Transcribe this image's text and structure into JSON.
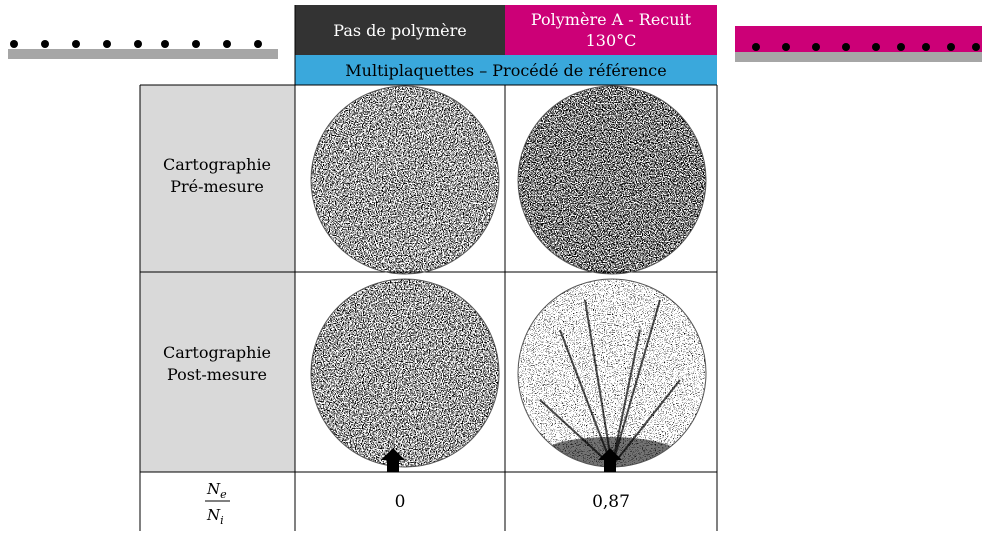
{
  "header": {
    "col1": "Pas de polymère",
    "col2_line1": "Polymère A - Recuit",
    "col2_line2": "130°C",
    "subtitle": "Multiplaquettes – Procédé de référence"
  },
  "rows": [
    {
      "label_line1": "Cartographie",
      "label_line2": "Pré-mesure"
    },
    {
      "label_line1": "Cartographie",
      "label_line2": "Post-mesure"
    }
  ],
  "ratio": {
    "numerator": {
      "base": "N",
      "sub": "e"
    },
    "denominator": {
      "base": "N",
      "sub": "i"
    },
    "values": [
      "0",
      "0,87"
    ]
  }
}
